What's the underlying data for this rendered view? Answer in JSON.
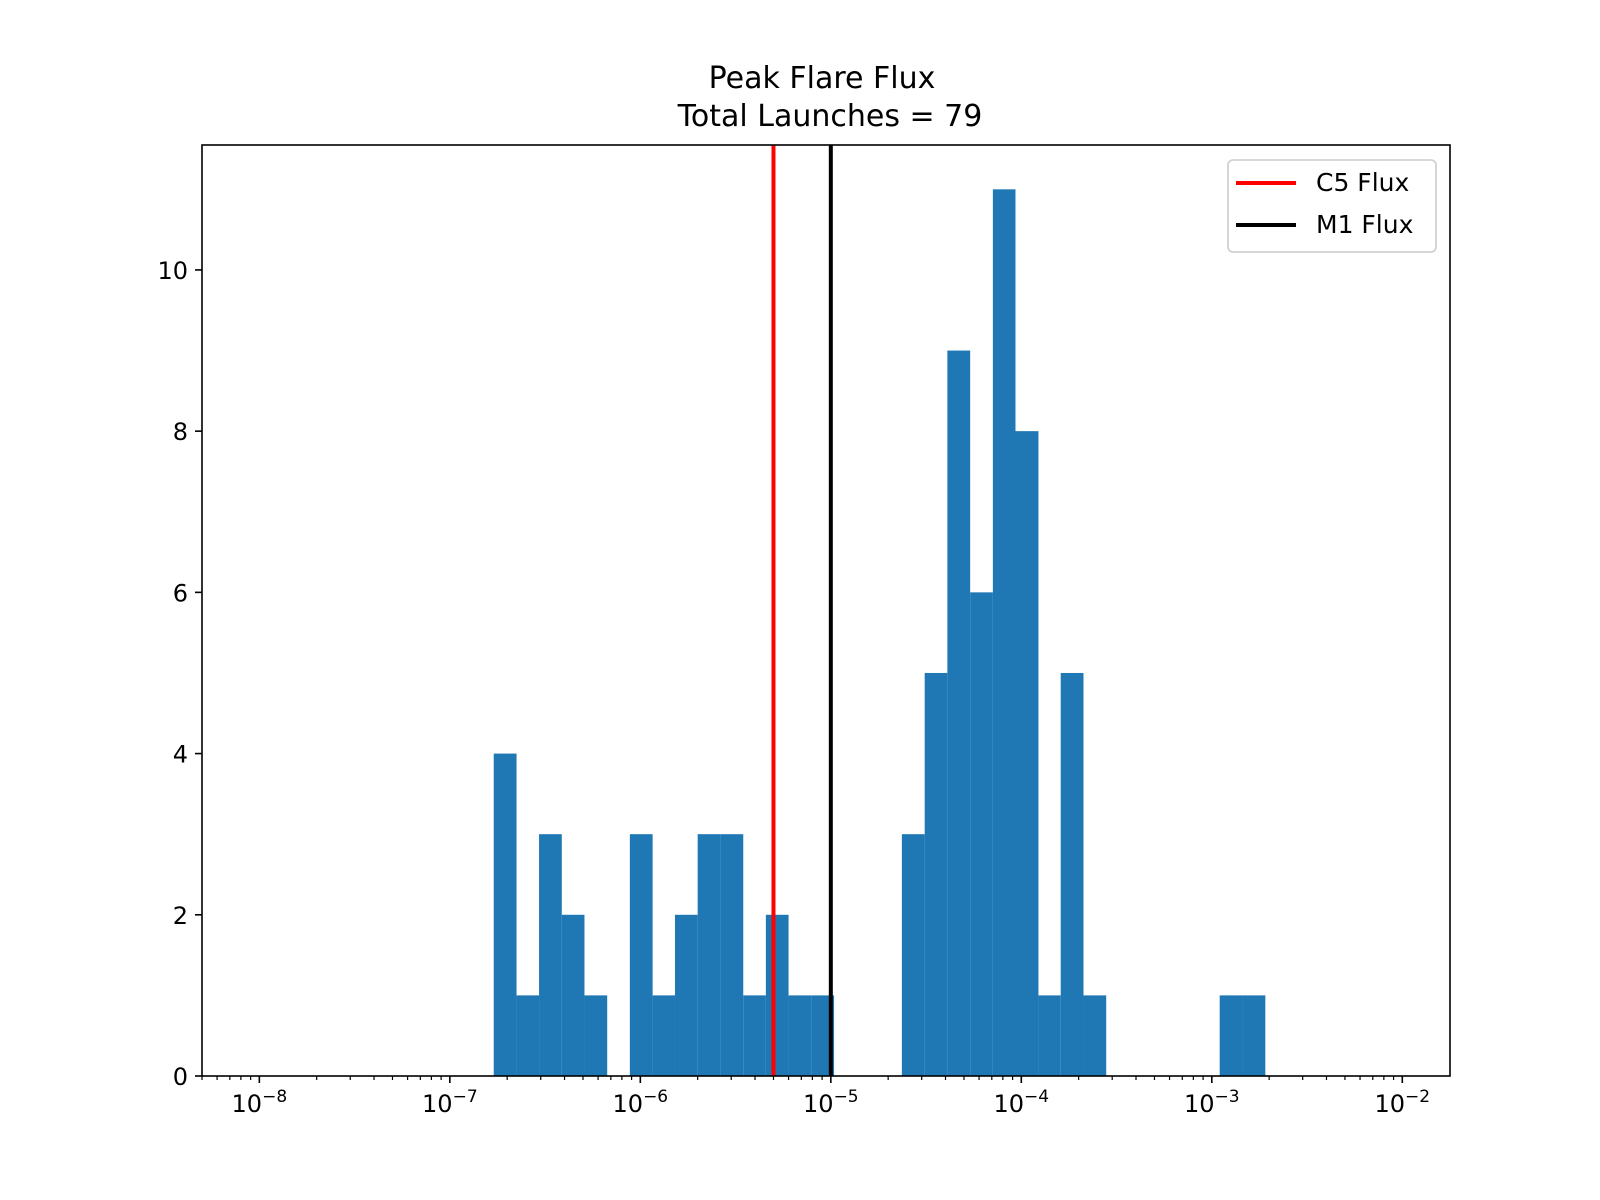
{
  "chart_data": {
    "type": "bar",
    "title": "Peak Flare Flux",
    "subtitle": "Total Launches = 79",
    "xlabel": "",
    "ylabel": "",
    "x_scale": "log",
    "xlim": [
      5e-09,
      0.0178
    ],
    "ylim": [
      0,
      11.55
    ],
    "x_ticks": [
      {
        "value": 1e-08,
        "base": "10",
        "exp": "−8"
      },
      {
        "value": 1e-07,
        "base": "10",
        "exp": "−7"
      },
      {
        "value": 1e-06,
        "base": "10",
        "exp": "−6"
      },
      {
        "value": 1e-05,
        "base": "10",
        "exp": "−5"
      },
      {
        "value": 0.0001,
        "base": "10",
        "exp": "−4"
      },
      {
        "value": 0.001,
        "base": "10",
        "exp": "−3"
      },
      {
        "value": 0.01,
        "base": "10",
        "exp": "−2"
      }
    ],
    "y_ticks": [
      "0",
      "2",
      "4",
      "6",
      "8",
      "10"
    ],
    "bin_edges": [
      1.7e-07,
      2.24e-07,
      2.94e-07,
      3.87e-07,
      5.09e-07,
      6.7e-07,
      8.81e-07,
      1.16e-06,
      1.52e-06,
      2e-06,
      2.64e-06,
      3.47e-06,
      4.56e-06,
      6e-06,
      7.9e-06,
      1.04e-05,
      1.37e-05,
      1.8e-05,
      2.36e-05,
      3.11e-05,
      4.09e-05,
      5.39e-05,
      7.09e-05,
      9.32e-05,
      0.000123,
      0.000161,
      0.000212,
      0.000279,
      0.000367,
      0.000483,
      0.000636,
      0.000837,
      0.0011,
      0.00145,
      0.00191
    ],
    "counts": [
      4,
      1,
      3,
      2,
      1,
      0,
      3,
      1,
      2,
      3,
      3,
      1,
      2,
      1,
      1,
      0,
      0,
      0,
      3,
      5,
      9,
      6,
      11,
      8,
      1,
      5,
      1,
      0,
      0,
      0,
      0,
      0,
      1,
      1
    ],
    "bar_color": "#1f77b4",
    "grid": false,
    "reference_lines": [
      {
        "label": "C5 Flux",
        "value": 5e-06,
        "color": "#ff0000"
      },
      {
        "label": "M1 Flux",
        "value": 1e-05,
        "color": "#000000"
      }
    ],
    "legend": {
      "placement": "top-right"
    }
  }
}
